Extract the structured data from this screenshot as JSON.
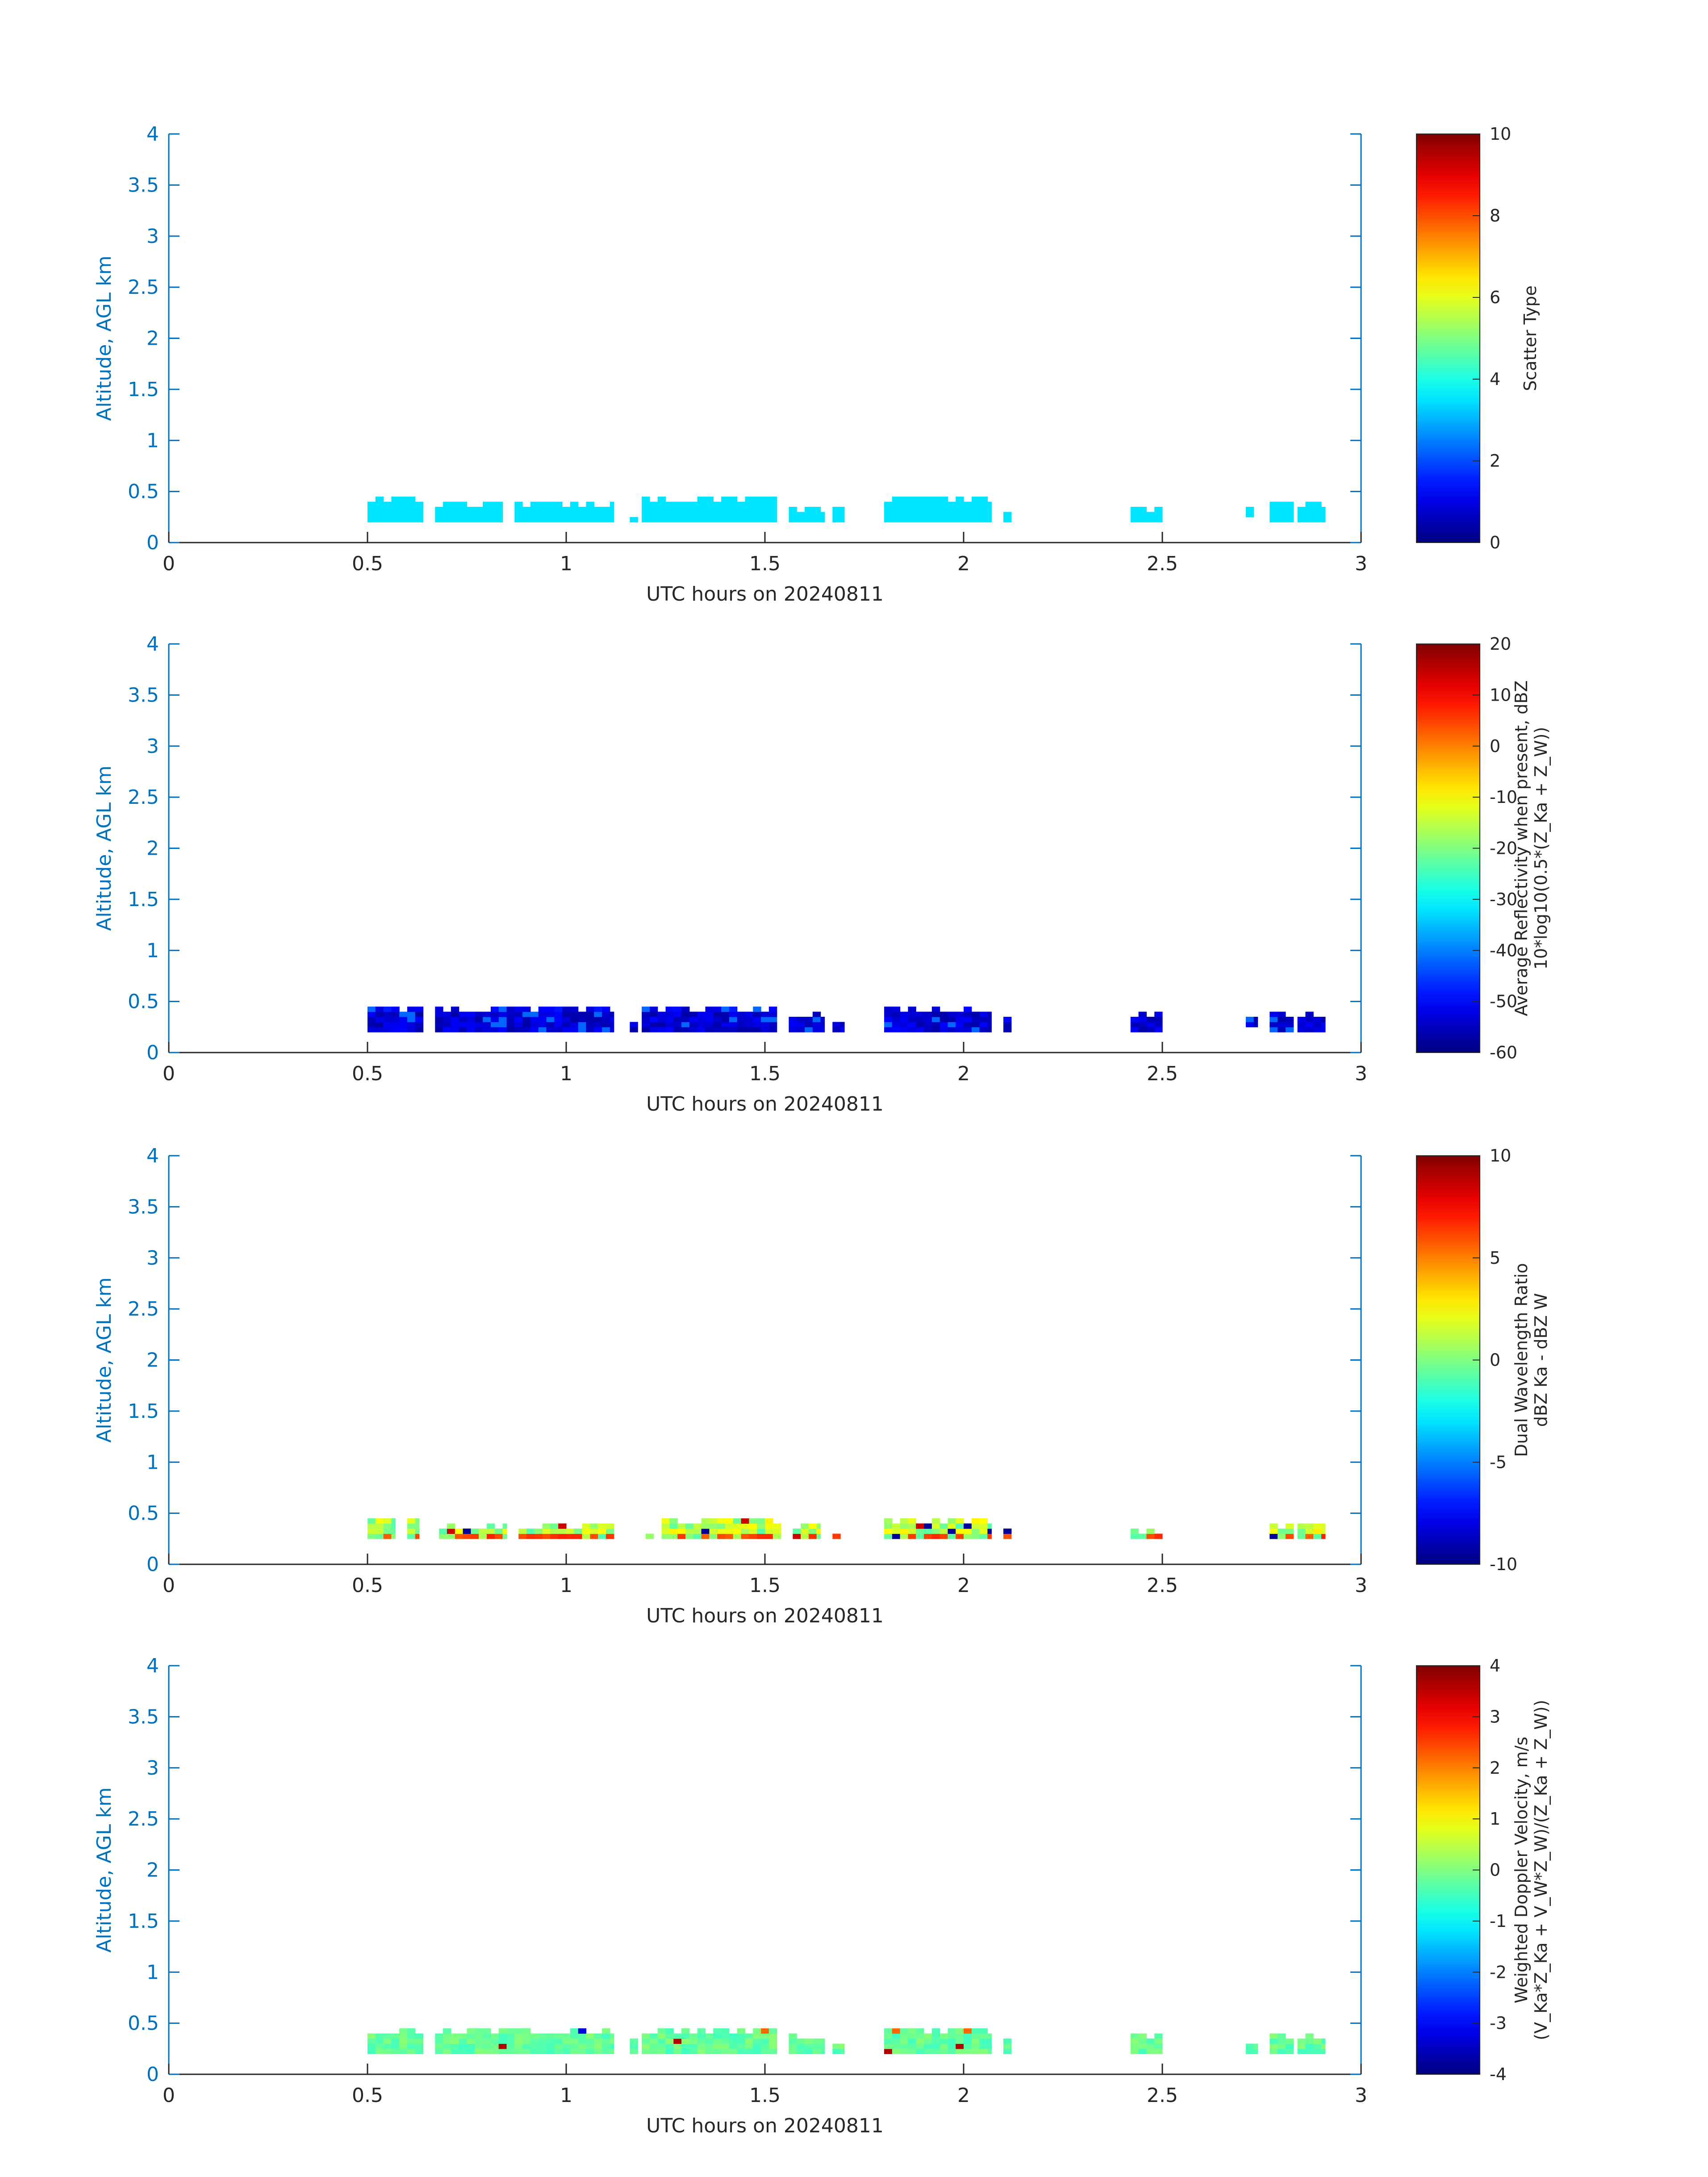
{
  "chart_data": [
    {
      "type": "heatmap",
      "xlabel": "UTC hours on 20240811",
      "ylabel": "Altitude, AGL km",
      "xlim": [
        0,
        3
      ],
      "ylim": [
        0,
        4
      ],
      "xticks": [
        "0",
        "0.5",
        "1",
        "1.5",
        "2",
        "2.5",
        "3"
      ],
      "yticks": [
        "0",
        "0.5",
        "1",
        "1.5",
        "2",
        "2.5",
        "3",
        "3.5",
        "4"
      ],
      "colorbar": {
        "label_lines": [
          "Scatter Type"
        ],
        "range": [
          0,
          10
        ],
        "ticks": [
          "0",
          "2",
          "4",
          "6",
          "8",
          "10"
        ]
      },
      "pattern": "constant",
      "pattern_value": 3.5,
      "x_bin_hours": 0.02,
      "segments": [
        {
          "start": 0.5,
          "end": 0.64,
          "bottom": 0.2,
          "top": 0.45
        },
        {
          "start": 0.67,
          "end": 0.84,
          "bottom": 0.2,
          "top": 0.4
        },
        {
          "start": 0.87,
          "end": 1.12,
          "bottom": 0.2,
          "top": 0.4
        },
        {
          "start": 1.16,
          "end": 1.18,
          "bottom": 0.2,
          "top": 0.25
        },
        {
          "start": 1.19,
          "end": 1.53,
          "bottom": 0.2,
          "top": 0.45
        },
        {
          "start": 1.56,
          "end": 1.65,
          "bottom": 0.2,
          "top": 0.35
        },
        {
          "start": 1.67,
          "end": 1.7,
          "bottom": 0.2,
          "top": 0.35
        },
        {
          "start": 1.8,
          "end": 2.07,
          "bottom": 0.2,
          "top": 0.45
        },
        {
          "start": 2.1,
          "end": 2.12,
          "bottom": 0.2,
          "top": 0.35
        },
        {
          "start": 2.42,
          "end": 2.5,
          "bottom": 0.2,
          "top": 0.35
        },
        {
          "start": 2.71,
          "end": 2.73,
          "bottom": 0.25,
          "top": 0.35
        },
        {
          "start": 2.77,
          "end": 2.83,
          "bottom": 0.2,
          "top": 0.4
        },
        {
          "start": 2.84,
          "end": 2.91,
          "bottom": 0.2,
          "top": 0.4
        }
      ]
    },
    {
      "type": "heatmap",
      "xlabel": "UTC hours on 20240811",
      "ylabel": "Altitude, AGL km",
      "xlim": [
        0,
        3
      ],
      "ylim": [
        0,
        4
      ],
      "xticks": [
        "0",
        "0.5",
        "1",
        "1.5",
        "2",
        "2.5",
        "3"
      ],
      "yticks": [
        "0",
        "0.5",
        "1",
        "1.5",
        "2",
        "2.5",
        "3",
        "3.5",
        "4"
      ],
      "colorbar": {
        "label_lines": [
          "Average Reflectivity when present, dBZ",
          "10*log10(0.5*(Z_Ka + Z_W))"
        ],
        "range": [
          -60,
          20
        ],
        "ticks": [
          "-60",
          "-50",
          "-40",
          "-30",
          "-20",
          "-10",
          "0",
          "10",
          "20"
        ]
      },
      "pattern": "reflectivity",
      "pattern_value": -55,
      "x_bin_hours": 0.02,
      "segments": [
        {
          "start": 0.5,
          "end": 0.64,
          "bottom": 0.2,
          "top": 0.45
        },
        {
          "start": 0.67,
          "end": 1.12,
          "bottom": 0.2,
          "top": 0.45
        },
        {
          "start": 1.16,
          "end": 1.18,
          "bottom": 0.2,
          "top": 0.35
        },
        {
          "start": 1.19,
          "end": 1.53,
          "bottom": 0.2,
          "top": 0.45
        },
        {
          "start": 1.56,
          "end": 1.65,
          "bottom": 0.2,
          "top": 0.4
        },
        {
          "start": 1.67,
          "end": 1.7,
          "bottom": 0.2,
          "top": 0.35
        },
        {
          "start": 1.8,
          "end": 2.07,
          "bottom": 0.2,
          "top": 0.45
        },
        {
          "start": 2.1,
          "end": 2.12,
          "bottom": 0.2,
          "top": 0.35
        },
        {
          "start": 2.42,
          "end": 2.5,
          "bottom": 0.2,
          "top": 0.4
        },
        {
          "start": 2.71,
          "end": 2.74,
          "bottom": 0.25,
          "top": 0.35
        },
        {
          "start": 2.77,
          "end": 2.83,
          "bottom": 0.2,
          "top": 0.4
        },
        {
          "start": 2.84,
          "end": 2.91,
          "bottom": 0.2,
          "top": 0.4
        }
      ]
    },
    {
      "type": "heatmap",
      "xlabel": "UTC hours on 20240811",
      "ylabel": "Altitude, AGL km",
      "xlim": [
        0,
        3
      ],
      "ylim": [
        0,
        4
      ],
      "xticks": [
        "0",
        "0.5",
        "1",
        "1.5",
        "2",
        "2.5",
        "3"
      ],
      "yticks": [
        "0",
        "0.5",
        "1",
        "1.5",
        "2",
        "2.5",
        "3",
        "3.5",
        "4"
      ],
      "colorbar": {
        "label_lines": [
          "Dual Wavelength Ratio",
          "dBZ Ka - dBZ W"
        ],
        "range": [
          -10,
          10
        ],
        "ticks": [
          "-10",
          "-5",
          "0",
          "5",
          "10"
        ]
      },
      "pattern": "dwr",
      "pattern_value": 0,
      "x_bin_hours": 0.02,
      "segments": [
        {
          "start": 0.5,
          "end": 0.57,
          "bottom": 0.25,
          "top": 0.45
        },
        {
          "start": 0.6,
          "end": 0.63,
          "bottom": 0.25,
          "top": 0.45
        },
        {
          "start": 0.68,
          "end": 0.85,
          "bottom": 0.25,
          "top": 0.4
        },
        {
          "start": 0.88,
          "end": 1.12,
          "bottom": 0.25,
          "top": 0.4
        },
        {
          "start": 1.16,
          "end": 1.18,
          "bottom": 0.25,
          "top": 0.3
        },
        {
          "start": 1.2,
          "end": 1.22,
          "bottom": 0.25,
          "top": 0.3
        },
        {
          "start": 1.24,
          "end": 1.54,
          "bottom": 0.25,
          "top": 0.45
        },
        {
          "start": 1.57,
          "end": 1.64,
          "bottom": 0.25,
          "top": 0.4
        },
        {
          "start": 1.67,
          "end": 1.69,
          "bottom": 0.25,
          "top": 0.35
        },
        {
          "start": 1.8,
          "end": 2.07,
          "bottom": 0.25,
          "top": 0.45
        },
        {
          "start": 2.1,
          "end": 2.12,
          "bottom": 0.25,
          "top": 0.35
        },
        {
          "start": 2.42,
          "end": 2.5,
          "bottom": 0.25,
          "top": 0.35
        },
        {
          "start": 2.77,
          "end": 2.83,
          "bottom": 0.25,
          "top": 0.4
        },
        {
          "start": 2.84,
          "end": 2.91,
          "bottom": 0.25,
          "top": 0.4
        }
      ]
    },
    {
      "type": "heatmap",
      "xlabel": "UTC hours on 20240811",
      "ylabel": "Altitude, AGL km",
      "xlim": [
        0,
        3
      ],
      "ylim": [
        0,
        4
      ],
      "xticks": [
        "0",
        "0.5",
        "1",
        "1.5",
        "2",
        "2.5",
        "3"
      ],
      "yticks": [
        "0",
        "0.5",
        "1",
        "1.5",
        "2",
        "2.5",
        "3",
        "3.5",
        "4"
      ],
      "colorbar": {
        "label_lines": [
          "Weighted Doppler Velocity, m/s",
          "(V_Ka*Z_Ka + V_W*Z_W)/(Z_Ka + Z_W))"
        ],
        "range": [
          -4,
          4
        ],
        "ticks": [
          "-4",
          "-3",
          "-2",
          "-1",
          "0",
          "1",
          "2",
          "3",
          "4"
        ]
      },
      "pattern": "velocity",
      "pattern_value": -0.5,
      "x_bin_hours": 0.02,
      "segments": [
        {
          "start": 0.5,
          "end": 0.64,
          "bottom": 0.2,
          "top": 0.45
        },
        {
          "start": 0.67,
          "end": 1.12,
          "bottom": 0.2,
          "top": 0.45
        },
        {
          "start": 1.16,
          "end": 1.18,
          "bottom": 0.2,
          "top": 0.35
        },
        {
          "start": 1.19,
          "end": 1.53,
          "bottom": 0.2,
          "top": 0.45
        },
        {
          "start": 1.56,
          "end": 1.65,
          "bottom": 0.2,
          "top": 0.4
        },
        {
          "start": 1.67,
          "end": 1.7,
          "bottom": 0.2,
          "top": 0.35
        },
        {
          "start": 1.8,
          "end": 2.07,
          "bottom": 0.2,
          "top": 0.45
        },
        {
          "start": 2.1,
          "end": 2.12,
          "bottom": 0.2,
          "top": 0.35
        },
        {
          "start": 2.42,
          "end": 2.5,
          "bottom": 0.2,
          "top": 0.4
        },
        {
          "start": 2.71,
          "end": 2.74,
          "bottom": 0.2,
          "top": 0.3
        },
        {
          "start": 2.77,
          "end": 2.83,
          "bottom": 0.2,
          "top": 0.4
        },
        {
          "start": 2.84,
          "end": 2.91,
          "bottom": 0.2,
          "top": 0.4
        }
      ]
    }
  ]
}
